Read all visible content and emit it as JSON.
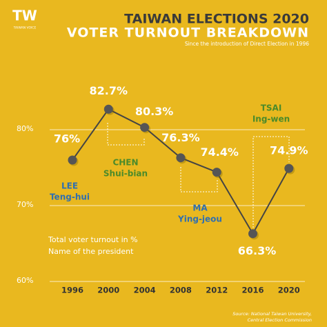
{
  "logo": {
    "mark": "TW",
    "text": "TAIWAN VOICE"
  },
  "chart_data": {
    "type": "line",
    "title": "TAIWAN ELECTIONS 2020",
    "subtitle": "VOTER TURNOUT BREAKDOWN",
    "note": "Since the introduction of Direct Election in 1996",
    "categories": [
      "1996",
      "2000",
      "2004",
      "2008",
      "2012",
      "2016",
      "2020"
    ],
    "series": [
      {
        "name": "Total voter turnout in %",
        "color": "#444444",
        "values": [
          76,
          82.7,
          80.3,
          76.3,
          74.4,
          66.3,
          74.9
        ],
        "value_labels": [
          "76%",
          "82.7%",
          "80.3%",
          "76.3%",
          "74.4%",
          "66.3%",
          "74.9%"
        ]
      }
    ],
    "ylim": [
      58,
      86
    ],
    "yticks": [
      {
        "value": 60,
        "label": "60%"
      },
      {
        "value": 70,
        "label": "70%"
      },
      {
        "value": 80,
        "label": "80%"
      }
    ],
    "grid": true,
    "legend_note": "Name of the president",
    "annotations": [
      {
        "lines": [
          "LEE",
          "Teng-hui"
        ],
        "color": "#2f6fb0"
      },
      {
        "lines": [
          "CHEN",
          "Shui-bian"
        ],
        "color": "#4b8a2a"
      },
      {
        "lines": [
          "MA",
          "Ying-jeou"
        ],
        "color": "#2f6fb0"
      },
      {
        "lines": [
          "TSAI",
          "Ing-wen"
        ],
        "color": "#4b8a2a"
      }
    ],
    "source": [
      "Source: National Taiwan University,",
      "Central Election Commission"
    ]
  }
}
